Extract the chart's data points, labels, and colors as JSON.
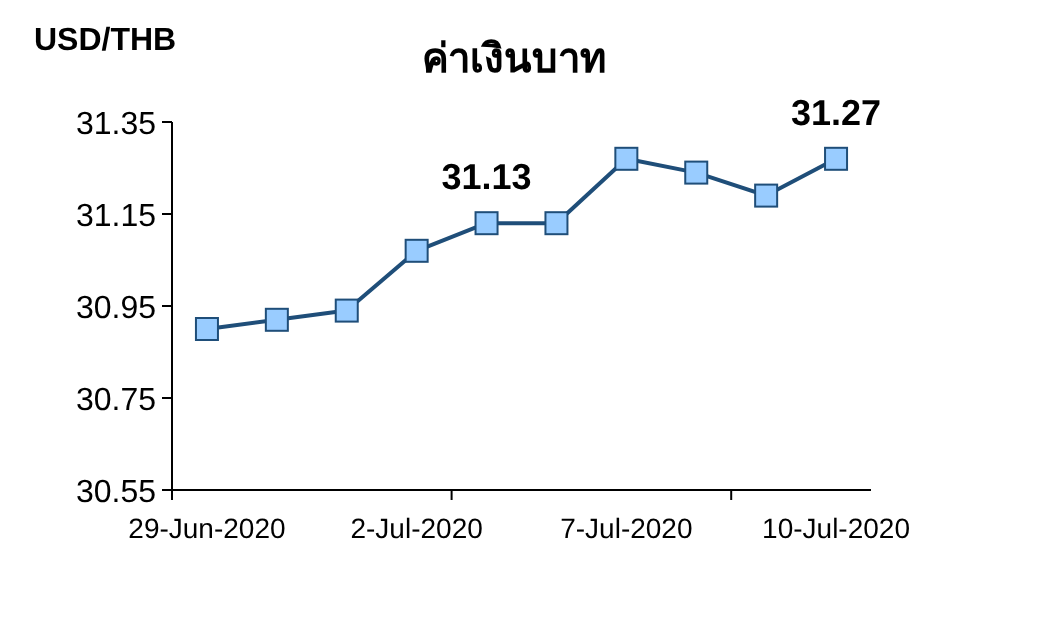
{
  "chart_data": {
    "type": "line",
    "title": "ค่าเงินบาท",
    "ylabel": "USD/THB",
    "categories": [
      "29-Jun-2020",
      null,
      null,
      "2-Jul-2020",
      null,
      null,
      "7-Jul-2020",
      null,
      null,
      "10-Jul-2020"
    ],
    "series": [
      {
        "color": "#1f4e79",
        "values": [
          30.9,
          30.92,
          30.94,
          31.07,
          31.13,
          31.13,
          31.27,
          31.24,
          31.19,
          31.27
        ],
        "value_labels": [
          null,
          null,
          null,
          null,
          "31.13",
          null,
          null,
          null,
          null,
          "31.27"
        ]
      }
    ],
    "ylim": [
      30.55,
      31.35
    ],
    "yticks": [
      30.55,
      30.75,
      30.95,
      31.15,
      31.35
    ],
    "marker": "square",
    "line_style": "solid"
  }
}
